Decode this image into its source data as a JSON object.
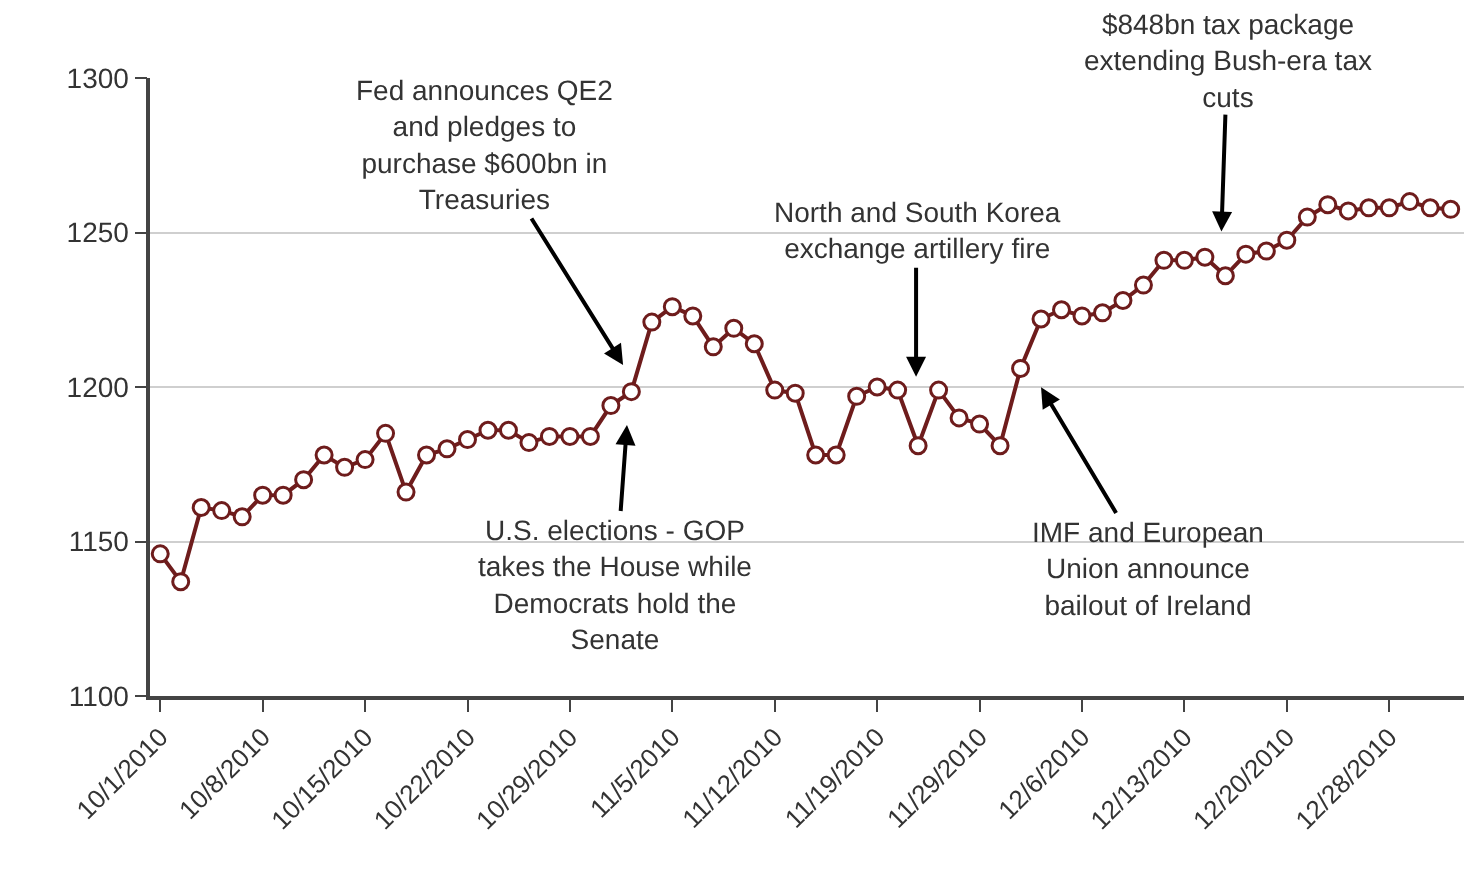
{
  "chart_data": {
    "type": "line",
    "categories": [
      "10/1/2010",
      null,
      null,
      null,
      null,
      "10/8/2010",
      null,
      null,
      null,
      null,
      "10/15/2010",
      null,
      null,
      null,
      null,
      "10/22/2010",
      null,
      null,
      null,
      null,
      "10/29/2010",
      null,
      null,
      null,
      null,
      "11/5/2010",
      null,
      null,
      null,
      null,
      "11/12/2010",
      null,
      null,
      null,
      null,
      "11/19/2010",
      null,
      null,
      null,
      null,
      "11/29/2010",
      null,
      null,
      null,
      null,
      "12/6/2010",
      null,
      null,
      null,
      null,
      "12/13/2010",
      null,
      null,
      null,
      null,
      "12/20/2010",
      null,
      null,
      null,
      null,
      "12/28/2010",
      null,
      null,
      null
    ],
    "series": [
      {
        "color": "#6e1c1c",
        "values": [
          1146,
          1137,
          1161,
          1160,
          1158,
          1165,
          1165,
          1170,
          1178,
          1174,
          1176.5,
          1185,
          1166,
          1178,
          1180,
          1183,
          1186,
          1186,
          1182,
          1184,
          1184,
          1184,
          1194,
          1198.5,
          1221,
          1226,
          1223,
          1213,
          1219,
          1214,
          1199,
          1198,
          1178,
          1178,
          1197,
          1200,
          1199,
          1181,
          1199,
          1190,
          1188,
          1181,
          1206,
          1222,
          1225,
          1223,
          1224,
          1228,
          1233,
          1241,
          1241,
          1242,
          1236,
          1243,
          1244,
          1247.5,
          1255,
          1259,
          1257,
          1258,
          1258,
          1260,
          1258,
          1257.5
        ]
      }
    ],
    "ylim": [
      1100,
      1300
    ],
    "yticks": [
      1100,
      1150,
      1200,
      1250,
      1300
    ],
    "grid": "y",
    "marker": "circle",
    "line_style": "solid",
    "annotations": [
      "Fed announces QE2 and pledges to purchase $600bn in Treasuries",
      "U.S. elections - GOP takes the House while Democrats hold the Senate",
      "North and South Korea exchange artillery fire",
      "IMF and European Union announce bailout of Ireland",
      "$848bn tax package extending Bush-era tax cuts"
    ]
  }
}
